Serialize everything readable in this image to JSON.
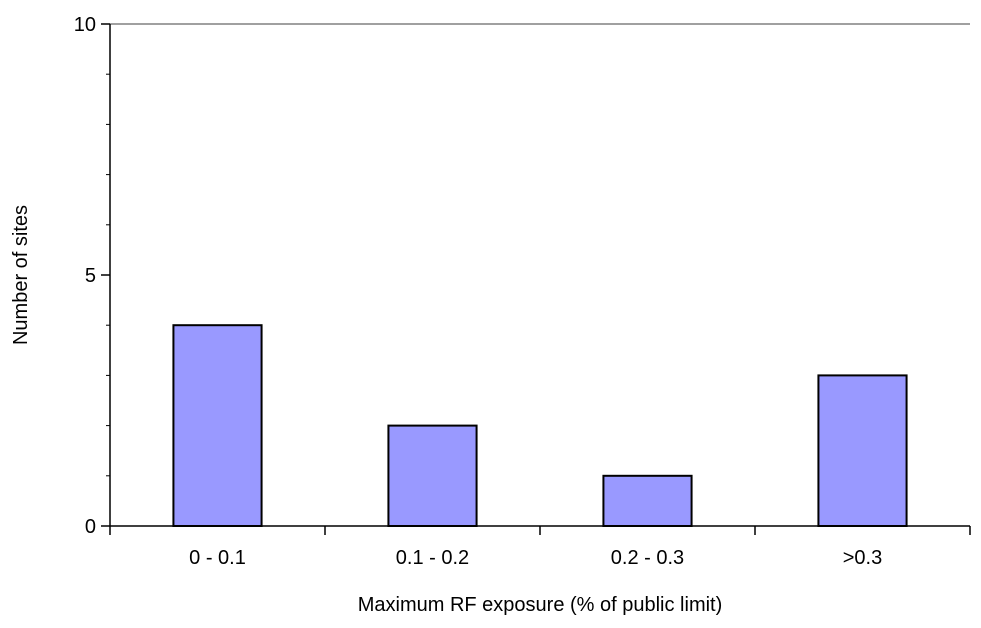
{
  "chart_data": {
    "type": "bar",
    "title": "",
    "xlabel": "Maximum RF exposure (% of public limit)",
    "ylabel": "Number of sites",
    "categories": [
      "0 - 0.1",
      "0.1 - 0.2",
      "0.2 - 0.3",
      ">0.3"
    ],
    "values": [
      4,
      2,
      1,
      3
    ],
    "ylim": [
      0,
      10
    ],
    "y_major_ticks": [
      0,
      5,
      10
    ],
    "y_minor_step": 1,
    "grid": false,
    "top_reference_line": true,
    "legend": "none",
    "colors": {
      "bar_fill": "#9999ff",
      "bar_stroke": "#000000",
      "axis": "#000000",
      "top_line": "#808080"
    }
  }
}
